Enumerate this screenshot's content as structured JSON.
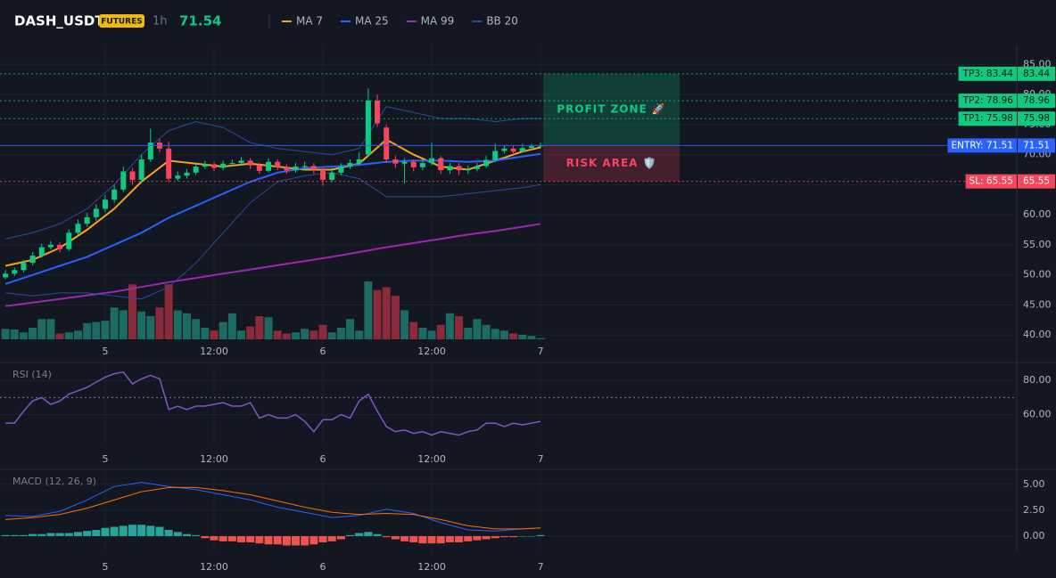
{
  "header": {
    "symbol": "DASH_USDT",
    "badge": "FUTURES",
    "interval": "1h",
    "price": 71.54,
    "price_color": "#0ecb81"
  },
  "chart_data": [
    {
      "type": "candlestick",
      "xlim": [
        -0.6,
        111.5
      ],
      "xticks": [
        {
          "value": 11,
          "label": "5"
        },
        {
          "value": 23,
          "label": "12:00"
        },
        {
          "value": 35,
          "label": "6"
        },
        {
          "value": 47,
          "label": "12:00"
        },
        {
          "value": 59,
          "label": "7"
        }
      ],
      "ylim": [
        38.7,
        88.3
      ],
      "yticks": [
        {
          "value": 85,
          "label": "85.00"
        },
        {
          "value": 80,
          "label": "80.00"
        },
        {
          "value": 75,
          "label": "75.00"
        },
        {
          "value": 70,
          "label": "70.00"
        },
        {
          "value": 65,
          "label": "65.00"
        },
        {
          "value": 60,
          "label": "60.00"
        },
        {
          "value": 55,
          "label": "55.00"
        },
        {
          "value": 50,
          "label": "50.00"
        },
        {
          "value": 45,
          "label": "45.00"
        },
        {
          "value": 40,
          "label": "40.00"
        }
      ],
      "grid": true,
      "up_color": "#0ecb81",
      "down_color": "#f6465d",
      "open": [
        49.6,
        50.2,
        50.8,
        52.0,
        53.2,
        54.6,
        55.0,
        54.3,
        57.0,
        58.5,
        59.6,
        61.0,
        62.5,
        64.2,
        67.2,
        65.8,
        69.2,
        72.0,
        71.0,
        66.0,
        66.5,
        67.0,
        68.0,
        68.4,
        67.8,
        68.5,
        68.6,
        69.0,
        68.2,
        67.3,
        68.8,
        67.9,
        67.4,
        68.0,
        68.1,
        67.5,
        65.8,
        67.0,
        68.0,
        68.6,
        70.0,
        79.0,
        74.5,
        69.2,
        68.5,
        68.8,
        67.9,
        68.6,
        69.4,
        67.4,
        68.1,
        67.4,
        67.6,
        68.1,
        69.1,
        70.6,
        71.0,
        70.5,
        71.1,
        71.4
      ],
      "high": [
        50.8,
        51.2,
        52.5,
        53.8,
        55.2,
        55.6,
        55.4,
        57.6,
        59.2,
        60.3,
        61.8,
        63.3,
        65.0,
        68.0,
        67.8,
        70.0,
        74.3,
        72.6,
        72.2,
        67.2,
        67.6,
        68.6,
        69.0,
        68.8,
        69.0,
        69.2,
        69.6,
        69.4,
        68.6,
        69.4,
        69.2,
        68.4,
        68.6,
        68.8,
        68.6,
        67.8,
        67.8,
        68.6,
        69.2,
        70.4,
        81.0,
        80.0,
        75.0,
        69.8,
        69.4,
        69.2,
        69.2,
        72.0,
        69.8,
        68.6,
        68.6,
        68.2,
        68.6,
        69.8,
        71.8,
        71.6,
        71.6,
        71.8,
        71.8,
        72.0
      ],
      "low": [
        49.3,
        49.8,
        50.4,
        51.6,
        52.8,
        54.2,
        53.8,
        54.0,
        56.6,
        58.0,
        59.0,
        60.4,
        62.0,
        63.8,
        65.0,
        65.4,
        68.8,
        70.4,
        65.4,
        65.6,
        66.0,
        66.6,
        67.6,
        67.2,
        67.4,
        68.0,
        68.2,
        67.6,
        66.8,
        67.0,
        67.4,
        66.8,
        67.0,
        67.4,
        66.8,
        64.8,
        65.4,
        66.6,
        67.6,
        68.2,
        69.6,
        74.6,
        68.6,
        67.8,
        65.2,
        67.2,
        67.4,
        68.2,
        66.8,
        66.8,
        66.6,
        66.8,
        67.2,
        67.8,
        68.8,
        70.2,
        70.0,
        70.4,
        70.8,
        71.0
      ],
      "close": [
        50.2,
        50.8,
        52.0,
        53.2,
        54.6,
        55.0,
        54.3,
        57.0,
        58.5,
        59.6,
        61.0,
        62.5,
        64.2,
        67.2,
        65.8,
        69.2,
        72.0,
        71.0,
        66.0,
        66.5,
        67.0,
        68.0,
        68.4,
        67.8,
        68.5,
        68.6,
        69.0,
        68.2,
        67.3,
        68.8,
        67.9,
        67.4,
        68.0,
        68.1,
        67.5,
        65.8,
        67.0,
        68.0,
        68.6,
        69.2,
        79.0,
        75.2,
        69.2,
        68.5,
        68.8,
        67.9,
        68.6,
        69.4,
        67.4,
        68.1,
        67.4,
        67.6,
        68.1,
        69.1,
        70.6,
        71.0,
        70.5,
        71.1,
        71.4,
        71.5
      ],
      "volume": {
        "ylim": [
          0,
          100
        ],
        "up_color": "#1c6b63",
        "down_color": "#8b2a3a",
        "values": [
          18,
          17,
          12,
          20,
          35,
          35,
          10,
          12,
          15,
          28,
          30,
          32,
          55,
          50,
          95,
          48,
          40,
          55,
          95,
          50,
          45,
          35,
          20,
          15,
          30,
          45,
          15,
          22,
          40,
          38,
          15,
          10,
          12,
          18,
          15,
          25,
          12,
          20,
          35,
          15,
          100,
          85,
          90,
          75,
          50,
          30,
          20,
          15,
          25,
          45,
          40,
          20,
          35,
          25,
          18,
          15,
          10,
          8,
          6,
          2
        ]
      },
      "series": [
        {
          "name": "MA 7",
          "color": "#f7a21b",
          "x": [
            0,
            3,
            6,
            9,
            12,
            15,
            18,
            21,
            24,
            27,
            30,
            33,
            36,
            39,
            42,
            45,
            48,
            51,
            54,
            57,
            59
          ],
          "values": [
            51.5,
            52.5,
            54.5,
            57.5,
            61,
            65.5,
            69,
            68.5,
            68,
            68.5,
            68,
            67.5,
            67.5,
            68.5,
            72.5,
            70,
            68,
            67.5,
            69,
            70.5,
            71.2
          ]
        },
        {
          "name": "MA 25",
          "color": "#2962ff",
          "x": [
            0,
            3,
            6,
            9,
            12,
            15,
            18,
            21,
            24,
            27,
            30,
            33,
            36,
            39,
            42,
            45,
            48,
            51,
            54,
            57,
            59
          ],
          "values": [
            48.5,
            50,
            51.5,
            53,
            55,
            57,
            59.5,
            61.5,
            63.5,
            65.5,
            67,
            67.8,
            68,
            68.3,
            68.8,
            69,
            69,
            68.8,
            69,
            69.7,
            70.1
          ]
        },
        {
          "name": "MA 99",
          "color": "#9c27b0",
          "x": [
            0,
            3,
            6,
            9,
            12,
            15,
            18,
            21,
            24,
            27,
            30,
            33,
            36,
            39,
            42,
            45,
            48,
            51,
            54,
            57,
            59
          ],
          "values": [
            44.8,
            45.4,
            46,
            46.6,
            47.2,
            48,
            48.8,
            49.5,
            50.2,
            50.9,
            51.6,
            52.3,
            53,
            53.8,
            54.6,
            55.3,
            56,
            56.7,
            57.3,
            58,
            58.5
          ]
        },
        {
          "name": "BB 20",
          "color": "#2b4a9b",
          "x": [
            0,
            3,
            6,
            9,
            12,
            15,
            18,
            21,
            24,
            27,
            30,
            33,
            36,
            39,
            42,
            45,
            48,
            51,
            54,
            57,
            59
          ],
          "values": [
            56,
            57,
            58.5,
            61,
            65,
            70,
            74,
            75.5,
            74.5,
            72,
            71,
            70.5,
            70,
            71,
            78,
            77,
            76,
            76,
            75.5,
            76,
            76
          ],
          "lower": [
            47,
            46.5,
            47,
            47,
            46.5,
            46,
            48,
            52,
            57,
            62,
            65.5,
            66.5,
            67,
            66,
            63,
            63,
            63,
            63.5,
            64,
            64.5,
            65
          ]
        }
      ],
      "levels": [
        {
          "label": "TP3: 83.44",
          "value": 83.44,
          "color": "#0ecb81",
          "style": "dotted"
        },
        {
          "label": "TP2: 78.96",
          "value": 78.96,
          "color": "#0ecb81",
          "style": "dotted"
        },
        {
          "label": "TP1: 75.98",
          "value": 75.98,
          "color": "#0ecb81",
          "style": "dotted"
        },
        {
          "label": "ENTRY: 71.51",
          "value": 71.51,
          "color": "#2962ff",
          "style": "solid"
        },
        {
          "label": "SL: 65.55",
          "value": 65.55,
          "color": "#f6465d",
          "style": "dotted"
        }
      ],
      "zones": [
        {
          "label": "PROFIT ZONE 🚀",
          "range": [
            71.51,
            83.44
          ],
          "color": "#0ecb81",
          "text_color": "#0ecb81"
        },
        {
          "label": "RISK AREA 🛡️",
          "range": [
            65.55,
            71.51
          ],
          "color": "#f6465d",
          "text_color": "#f6465d"
        }
      ]
    },
    {
      "type": "line",
      "title": "RSI (14)",
      "color": "#7e57c2",
      "xlim": [
        -0.6,
        111.5
      ],
      "xticks": [
        {
          "value": 11,
          "label": "5"
        },
        {
          "value": 23,
          "label": "12:00"
        },
        {
          "value": 35,
          "label": "6"
        },
        {
          "value": 47,
          "label": "12:00"
        },
        {
          "value": 59,
          "label": "7"
        }
      ],
      "ylim": [
        42,
        89
      ],
      "yticks": [
        {
          "value": 80,
          "label": "80.00"
        },
        {
          "value": 60,
          "label": "60.00"
        }
      ],
      "levels": [
        70
      ],
      "grid": true,
      "values": [
        55,
        55,
        62,
        68,
        70,
        66,
        68,
        72,
        74,
        76,
        79,
        82,
        84,
        85,
        78,
        81,
        83,
        81,
        63,
        65,
        63,
        65,
        65,
        66,
        67,
        65,
        65,
        67,
        58,
        60,
        58,
        58,
        60,
        56,
        50,
        57,
        57,
        60,
        58,
        68,
        72,
        62,
        53,
        50,
        51,
        49,
        50,
        48,
        50,
        49,
        48,
        50,
        51,
        55,
        55,
        53,
        55,
        54,
        55,
        56
      ]
    },
    {
      "type": "macd",
      "title": "MACD (12, 26, 9)",
      "xlim": [
        -0.6,
        111.5
      ],
      "xticks": [
        {
          "value": 11,
          "label": "5"
        },
        {
          "value": 23,
          "label": "12:00"
        },
        {
          "value": 35,
          "label": "6"
        },
        {
          "value": 47,
          "label": "12:00"
        },
        {
          "value": 59,
          "label": "7"
        }
      ],
      "ylim": [
        -1.55,
        6.2
      ],
      "yticks": [
        {
          "value": 5,
          "label": "5.00"
        },
        {
          "value": 2.5,
          "label": "2.50"
        },
        {
          "value": 0,
          "label": "0.00"
        }
      ],
      "grid": true,
      "series": [
        {
          "color": "#2962ff",
          "x": [
            0,
            3,
            6,
            9,
            12,
            15,
            18,
            21,
            24,
            27,
            30,
            33,
            36,
            39,
            42,
            45,
            48,
            51,
            54,
            57,
            59
          ],
          "values": [
            2.0,
            1.9,
            2.4,
            3.5,
            4.8,
            5.2,
            4.8,
            4.5,
            4.0,
            3.5,
            2.8,
            2.3,
            1.8,
            2.0,
            2.6,
            2.2,
            1.3,
            0.6,
            0.5,
            0.7,
            0.8
          ]
        },
        {
          "color": "#ff6d00",
          "x": [
            0,
            3,
            6,
            9,
            12,
            15,
            18,
            21,
            24,
            27,
            30,
            33,
            36,
            39,
            42,
            45,
            48,
            51,
            54,
            57,
            59
          ],
          "values": [
            1.6,
            1.8,
            2.1,
            2.7,
            3.5,
            4.3,
            4.7,
            4.7,
            4.4,
            4.0,
            3.4,
            2.8,
            2.3,
            2.1,
            2.2,
            2.1,
            1.6,
            1.0,
            0.7,
            0.7,
            0.8
          ]
        }
      ],
      "histogram": {
        "up_color": "#26a69a",
        "down_color": "#ef5350",
        "values": [
          0.1,
          0.1,
          0.1,
          0.2,
          0.2,
          0.3,
          0.3,
          0.3,
          0.4,
          0.5,
          0.6,
          0.8,
          0.9,
          1.0,
          1.1,
          1.1,
          1.0,
          0.9,
          0.6,
          0.4,
          0.2,
          0.1,
          -0.2,
          -0.4,
          -0.5,
          -0.5,
          -0.6,
          -0.6,
          -0.7,
          -0.8,
          -0.8,
          -0.9,
          -0.9,
          -0.9,
          -0.8,
          -0.6,
          -0.5,
          -0.3,
          0.1,
          0.3,
          0.4,
          0.2,
          -0.1,
          -0.3,
          -0.5,
          -0.6,
          -0.7,
          -0.7,
          -0.7,
          -0.6,
          -0.6,
          -0.5,
          -0.4,
          -0.3,
          -0.2,
          -0.1,
          -0.1,
          0.0,
          0.0,
          0.1
        ]
      }
    }
  ]
}
